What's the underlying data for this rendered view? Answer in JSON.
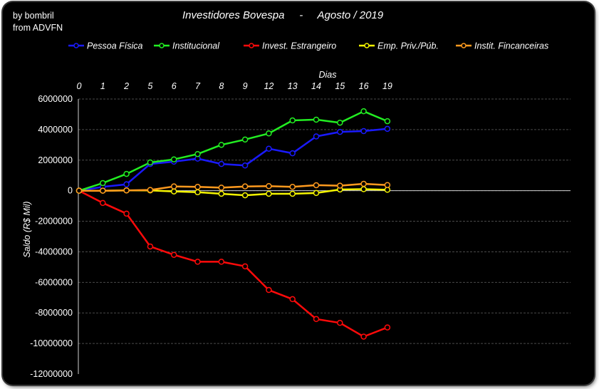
{
  "credit": {
    "line1": "by bombril",
    "line2": "from ADVFN"
  },
  "chart_data": {
    "type": "line",
    "title": "Investidores Bovespa     -     Agosto / 2019",
    "xlabel": "Dias",
    "ylabel": "Saldo (R$ Mil)",
    "x": [
      "0",
      "1",
      "2",
      "5",
      "6",
      "7",
      "8",
      "9",
      "12",
      "13",
      "14",
      "15",
      "16",
      "19"
    ],
    "ylim": [
      -12000000,
      6000000
    ],
    "yticks": [
      "6000000",
      "4000000",
      "2000000",
      "0",
      "-2000000",
      "-4000000",
      "-6000000",
      "-8000000",
      "-10000000",
      "-12000000"
    ],
    "grid": true,
    "legend_position": "top",
    "series": [
      {
        "name": "Pessoa Física",
        "color": "#1a1aff",
        "values": [
          0,
          250000,
          420000,
          1750000,
          1900000,
          2100000,
          1750000,
          1650000,
          2750000,
          2450000,
          3550000,
          3850000,
          3900000,
          4050000
        ]
      },
      {
        "name": "Institucional",
        "color": "#22ee22",
        "values": [
          0,
          500000,
          1100000,
          1850000,
          2050000,
          2400000,
          3000000,
          3350000,
          3750000,
          4600000,
          4650000,
          4450000,
          5200000,
          4550000
        ]
      },
      {
        "name": "Invest. Estrangeiro",
        "color": "#ff0a0a",
        "values": [
          0,
          -800000,
          -1500000,
          -3650000,
          -4200000,
          -4650000,
          -4650000,
          -4950000,
          -6500000,
          -7100000,
          -8400000,
          -8650000,
          -9550000,
          -8950000
        ]
      },
      {
        "name": "Emp. Priv./Púb.",
        "color": "#f5f500",
        "values": [
          0,
          0,
          20000,
          20000,
          -50000,
          -100000,
          -200000,
          -300000,
          -200000,
          -200000,
          -150000,
          80000,
          100000,
          60000
        ]
      },
      {
        "name": "Instit. Fincanceiras",
        "color": "#ff9a1e",
        "values": [
          0,
          0,
          20000,
          50000,
          280000,
          250000,
          200000,
          280000,
          300000,
          250000,
          360000,
          330000,
          450000,
          370000
        ]
      }
    ]
  }
}
